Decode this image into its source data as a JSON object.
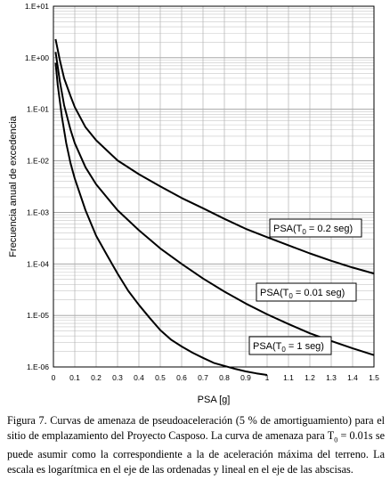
{
  "chart_data": {
    "type": "line",
    "xlabel": "PSA [g]",
    "ylabel": "Frecuencia anual de excedencia",
    "y_scale": "log",
    "xlim": [
      0,
      1.5
    ],
    "ylim": [
      1e-06,
      10
    ],
    "grid": true,
    "x_ticks": [
      "0",
      "0.1",
      "0.2",
      "0.3",
      "0.4",
      "0.5",
      "0.6",
      "0.7",
      "0.8",
      "0.9",
      "1",
      "1.1",
      "1.2",
      "1.3",
      "1.4",
      "1.5"
    ],
    "y_ticks": [
      "1.E+01",
      "1.E+00",
      "1.E-01",
      "1.E-02",
      "1.E-03",
      "1.E-04",
      "1.E-05",
      "1.E-06"
    ],
    "series": [
      {
        "name": "PSA(T0 = 0.2 seg)",
        "label_main": "PSA(T",
        "label_sub": "0",
        "label_rest": " = 0.2 seg)",
        "x": [
          0.01,
          0.03,
          0.05,
          0.08,
          0.1,
          0.15,
          0.2,
          0.3,
          0.4,
          0.5,
          0.6,
          0.7,
          0.8,
          0.9,
          1.0,
          1.1,
          1.2,
          1.3,
          1.4,
          1.5
        ],
        "y": [
          2.3,
          0.9,
          0.4,
          0.18,
          0.11,
          0.045,
          0.025,
          0.0102,
          0.0055,
          0.0032,
          0.0019,
          0.0012,
          0.00075,
          0.00048,
          0.00033,
          0.00023,
          0.00016,
          0.000115,
          8.5e-05,
          6.5e-05
        ]
      },
      {
        "name": "PSA(T0 = 0.01 seg)",
        "label_main": "PSA(T",
        "label_sub": "0",
        "label_rest": " = 0.01 seg)",
        "x": [
          0.01,
          0.03,
          0.05,
          0.08,
          0.1,
          0.15,
          0.2,
          0.3,
          0.4,
          0.5,
          0.6,
          0.7,
          0.8,
          0.9,
          1.0,
          1.1,
          1.2,
          1.3,
          1.4,
          1.5
        ],
        "y": [
          1.3,
          0.35,
          0.12,
          0.04,
          0.022,
          0.0075,
          0.0035,
          0.0011,
          0.00045,
          0.0002,
          0.0001,
          5.2e-05,
          2.9e-05,
          1.7e-05,
          1.05e-05,
          6.8e-06,
          4.5e-06,
          3.2e-06,
          2.3e-06,
          1.7e-06
        ]
      },
      {
        "name": "PSA(T0 = 1 seg)",
        "label_main": "PSA(T",
        "label_sub": "0",
        "label_rest": " = 1 seg)",
        "x": [
          0.01,
          0.02,
          0.04,
          0.06,
          0.08,
          0.1,
          0.15,
          0.2,
          0.25,
          0.3,
          0.35,
          0.4,
          0.45,
          0.5,
          0.55,
          0.6,
          0.65,
          0.7,
          0.75,
          0.8,
          0.85,
          0.9,
          0.95,
          1.0
        ],
        "y": [
          0.8,
          0.3,
          0.07,
          0.022,
          0.009,
          0.0045,
          0.0011,
          0.00035,
          0.00015,
          6.5e-05,
          3e-05,
          1.6e-05,
          9e-06,
          5.2e-06,
          3.4e-06,
          2.5e-06,
          1.9e-06,
          1.5e-06,
          1.2e-06,
          1.05e-06,
          9.2e-07,
          8.2e-07,
          7.5e-07,
          7e-07
        ]
      }
    ]
  },
  "caption": {
    "prefix": "Figura 7. Curvas de amenaza de pseudoaceleración (5 % de amortiguamiento) para el sitio de emplazamiento del Proyecto Casposo. La curva de amenaza para T",
    "sub": "0",
    "suffix": " = 0.01s se puede asumir como la correspondiente a la de aceleración máxima del terreno. La escala es logarítmica en el eje de las ordenadas y lineal en el eje de las abscisas."
  }
}
